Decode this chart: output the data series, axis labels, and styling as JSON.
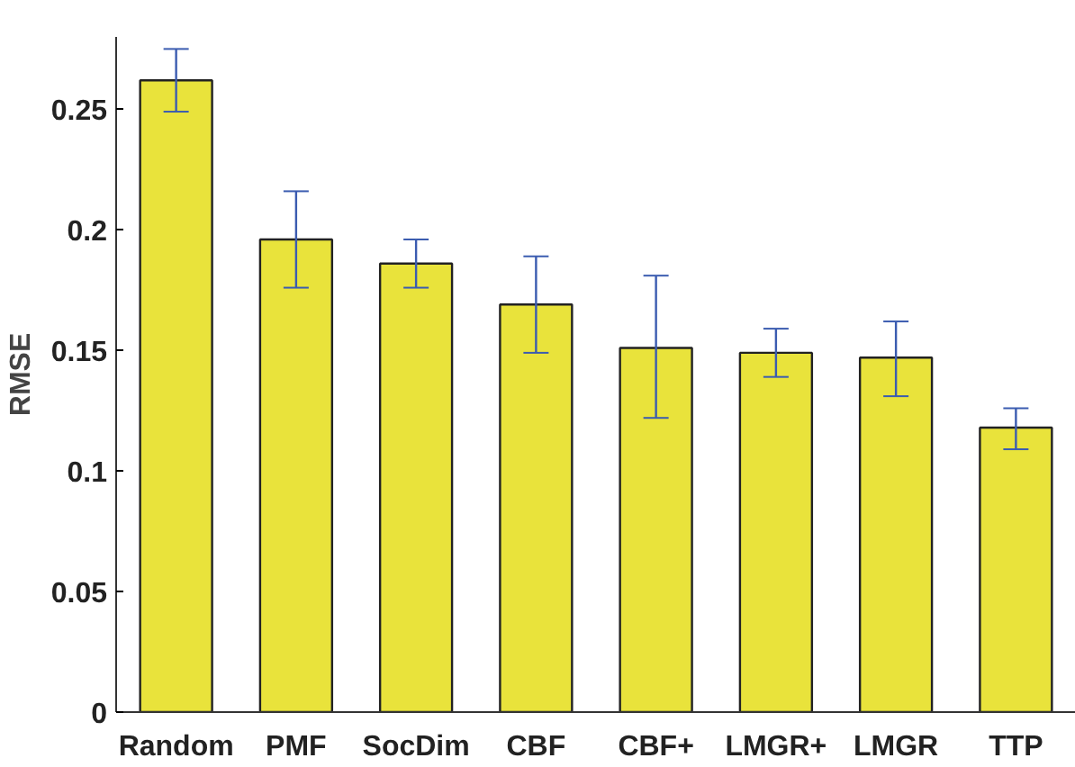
{
  "chart_data": {
    "type": "bar",
    "ylabel": "RMSE",
    "categories": [
      "Random",
      "PMF",
      "SocDim",
      "CBF",
      "CBF+",
      "LMGR+",
      "LMGR",
      "TTP"
    ],
    "values": [
      0.262,
      0.196,
      0.186,
      0.169,
      0.151,
      0.149,
      0.147,
      0.118
    ],
    "errors": [
      [
        0.249,
        0.275
      ],
      [
        0.176,
        0.216
      ],
      [
        0.176,
        0.196
      ],
      [
        0.149,
        0.189
      ],
      [
        0.122,
        0.181
      ],
      [
        0.139,
        0.159
      ],
      [
        0.131,
        0.162
      ],
      [
        0.109,
        0.126
      ]
    ],
    "color": "#e9e33b",
    "ylim": [
      0,
      0.28
    ],
    "yticks": [
      0,
      0.05,
      0.1,
      0.15,
      0.2,
      0.25
    ],
    "grid": false
  }
}
